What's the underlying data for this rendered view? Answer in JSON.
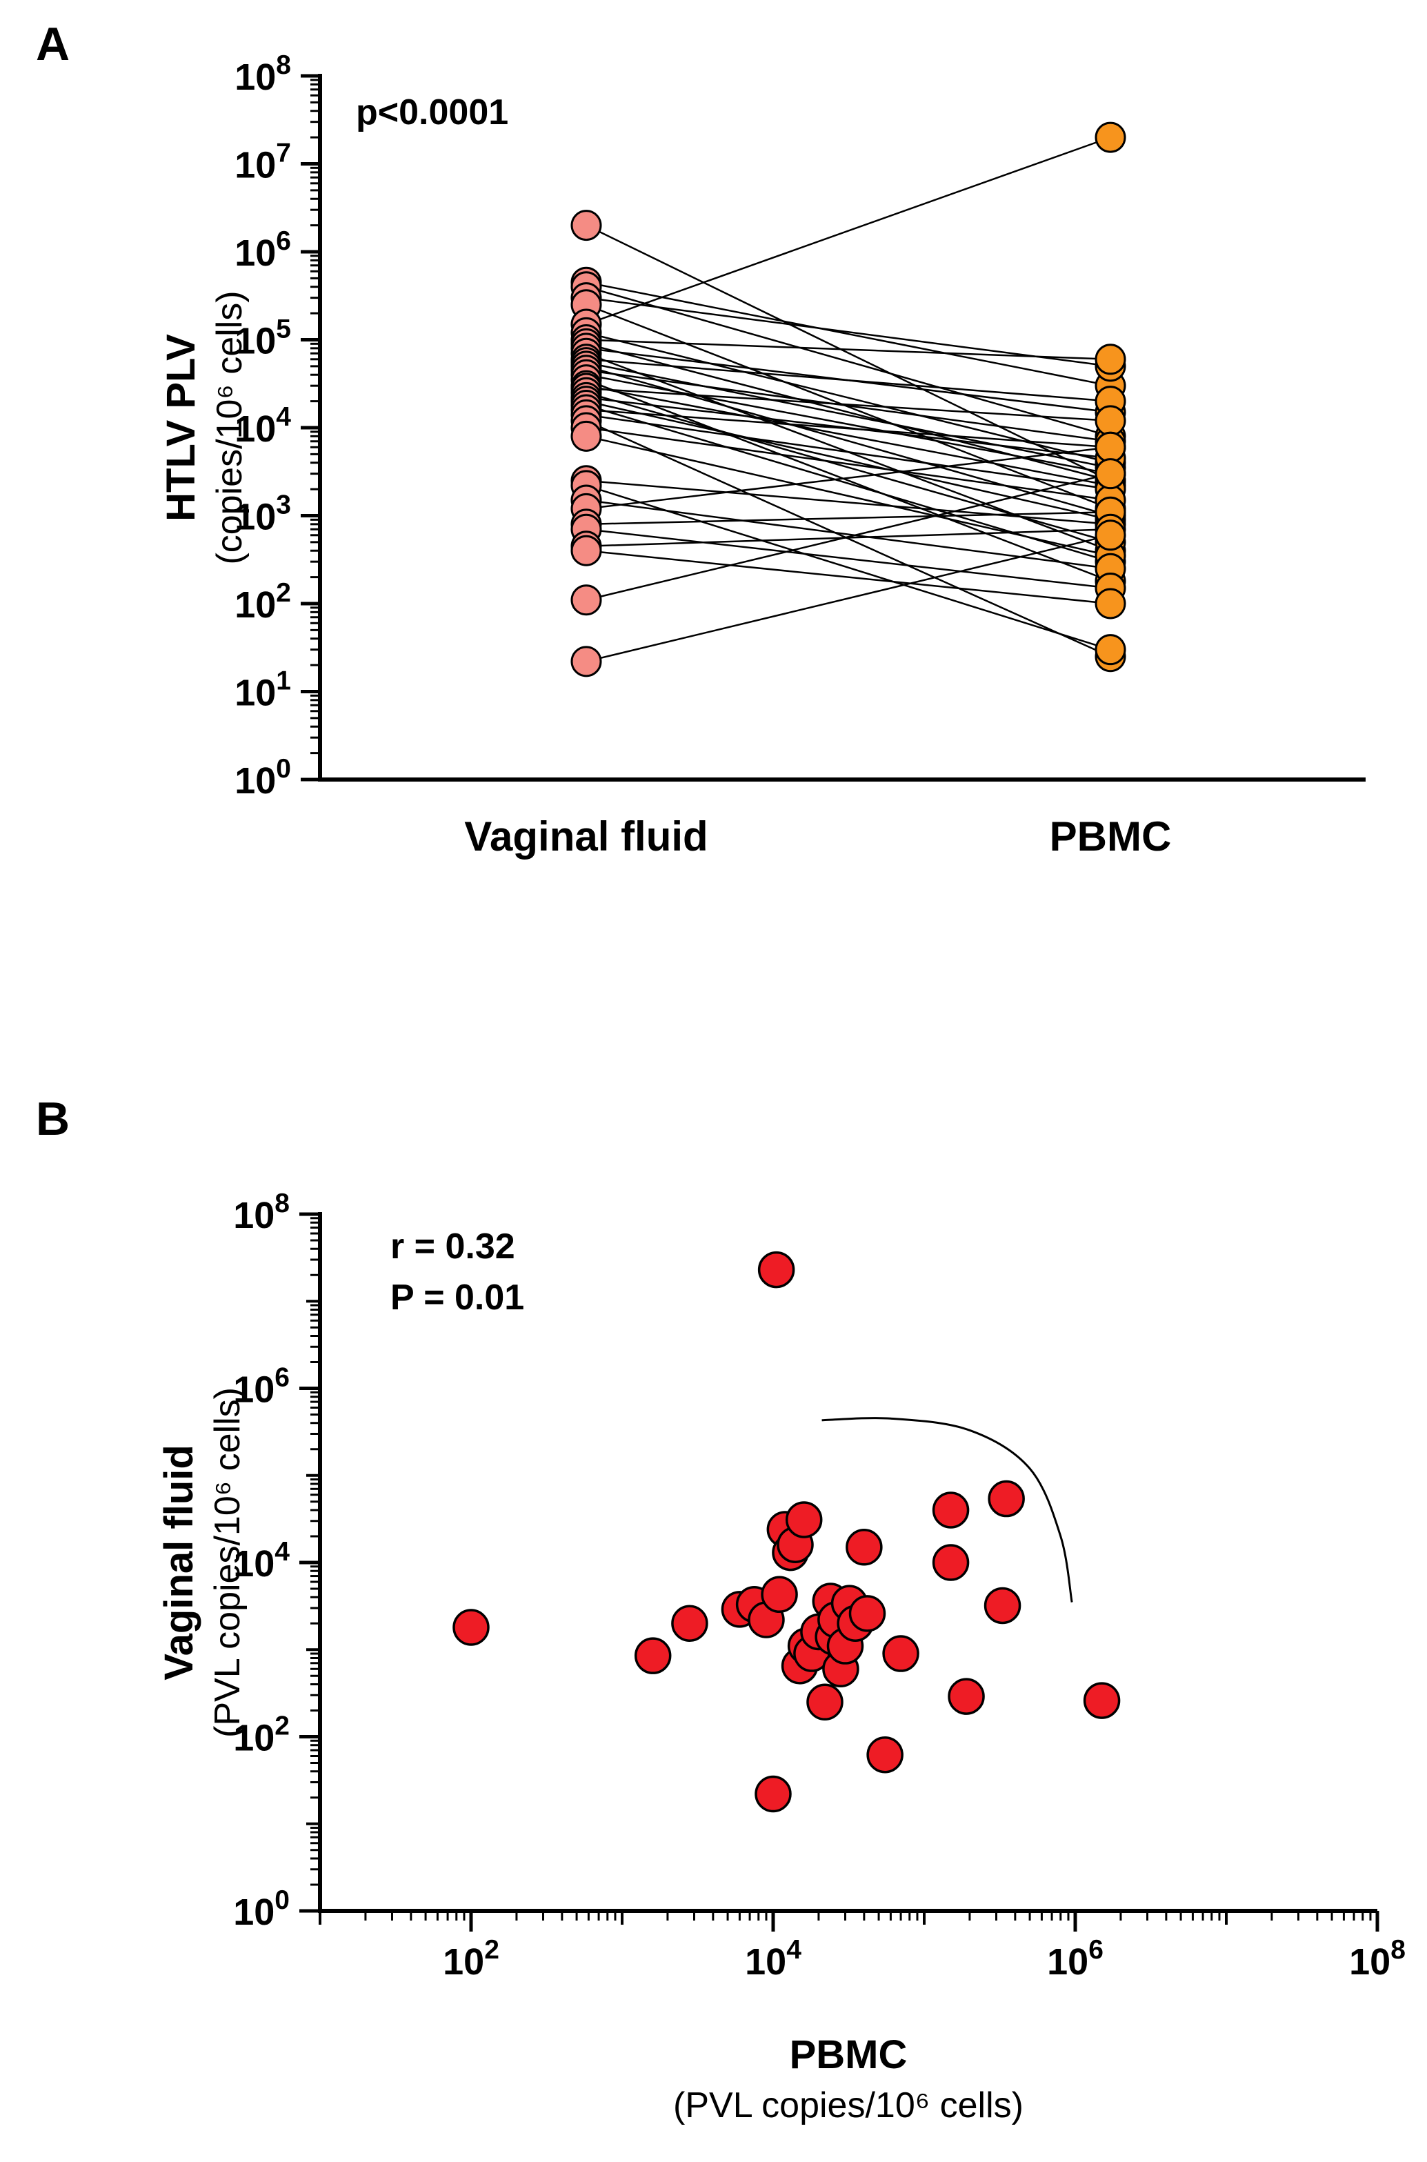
{
  "figure": {
    "panels": [
      {
        "letter": "A",
        "annotation": "p<0.0001",
        "y_label_line1": "HTLV PLV",
        "y_label_line2": "(copies/10⁶ cells)",
        "categories": [
          "Vaginal fluid",
          "PBMC"
        ]
      },
      {
        "letter": "B",
        "annotation_line1": "r = 0.32",
        "annotation_line2": "P = 0.01",
        "y_label_line1": "Vaginal fluid",
        "y_label_line2": "(PVL copies/10⁶ cells)",
        "x_label_line1": "PBMC",
        "x_label_line2": "(PVL copies/10⁶ cells)"
      }
    ]
  },
  "chart_data": [
    {
      "type": "scatter",
      "subtype": "paired-before-after",
      "panel": "A",
      "categories": [
        "Vaginal fluid",
        "PBMC"
      ],
      "y_scale": "log10",
      "ylim": [
        1,
        100000000
      ],
      "y_tick_exponents": [
        0,
        1,
        2,
        3,
        4,
        5,
        6,
        7,
        8
      ],
      "ylabel": "HTLV PLV (copies/10⁶ cells)",
      "p_value": "p<0.0001",
      "legend_position": "none",
      "grid": false,
      "point_colors": {
        "vaginal_fluid": "#F58C84",
        "pbmc": "#F7941D"
      },
      "line_color": "#000000",
      "pairs": [
        [
          2000000,
          2500
        ],
        [
          450000,
          30000
        ],
        [
          400000,
          8000
        ],
        [
          300000,
          50000
        ],
        [
          250000,
          1200
        ],
        [
          150000,
          20000000
        ],
        [
          120000,
          4000
        ],
        [
          100000,
          60000
        ],
        [
          90000,
          2500
        ],
        [
          80000,
          15000
        ],
        [
          70000,
          400
        ],
        [
          60000,
          20000
        ],
        [
          55000,
          3500
        ],
        [
          50000,
          1000
        ],
        [
          45000,
          7000
        ],
        [
          40000,
          3000
        ],
        [
          35000,
          180
        ],
        [
          30000,
          2200
        ],
        [
          28000,
          12000
        ],
        [
          25000,
          500
        ],
        [
          22000,
          4500
        ],
        [
          20000,
          900
        ],
        [
          18000,
          300
        ],
        [
          16000,
          6000
        ],
        [
          14000,
          2000
        ],
        [
          12000,
          25
        ],
        [
          10000,
          1500
        ],
        [
          8000,
          350
        ],
        [
          2500,
          800
        ],
        [
          2200,
          30
        ],
        [
          1500,
          250
        ],
        [
          1200,
          6000
        ],
        [
          800,
          1100
        ],
        [
          700,
          150
        ],
        [
          450,
          700
        ],
        [
          400,
          100
        ],
        [
          110,
          3000
        ],
        [
          22,
          600
        ]
      ]
    },
    {
      "type": "scatter",
      "panel": "B",
      "x_scale": "log10",
      "y_scale": "log10",
      "xlim": [
        10,
        100000000
      ],
      "ylim": [
        1,
        100000000
      ],
      "x_tick_label_exponents": [
        2,
        4,
        6,
        8
      ],
      "y_tick_label_exponents": [
        0,
        2,
        4,
        6,
        8
      ],
      "xlabel": "PBMC (PVL copies/10⁶ cells)",
      "ylabel": "Vaginal fluid (PVL copies/10⁶ cells)",
      "correlation_r": "r = 0.32",
      "p_value": "P = 0.01",
      "grid": false,
      "legend_position": "none",
      "point_color": "#EE1C25",
      "points": [
        [
          100,
          1800
        ],
        [
          1600,
          850
        ],
        [
          2800,
          2000
        ],
        [
          6000,
          2900
        ],
        [
          7500,
          3300
        ],
        [
          9000,
          2200
        ],
        [
          10500,
          23000000
        ],
        [
          11000,
          4300
        ],
        [
          12000,
          24000
        ],
        [
          13000,
          13000
        ],
        [
          14000,
          16000
        ],
        [
          15000,
          650
        ],
        [
          16000,
          31000
        ],
        [
          16500,
          1100
        ],
        [
          18000,
          900
        ],
        [
          20000,
          1600
        ],
        [
          22000,
          250
        ],
        [
          24000,
          3600
        ],
        [
          25000,
          1400
        ],
        [
          26000,
          2200
        ],
        [
          28000,
          600
        ],
        [
          30000,
          1100
        ],
        [
          32000,
          3400
        ],
        [
          35000,
          2000
        ],
        [
          40000,
          15000
        ],
        [
          42000,
          2600
        ],
        [
          55000,
          62
        ],
        [
          70000,
          900
        ],
        [
          150000,
          40000
        ],
        [
          150000,
          10000
        ],
        [
          350000,
          54000
        ],
        [
          330000,
          3200
        ],
        [
          190000,
          290
        ],
        [
          1500000,
          260
        ],
        [
          10000,
          22
        ]
      ],
      "curve_points": [
        [
          21000,
          430000
        ],
        [
          60000,
          450000
        ],
        [
          200000,
          330000
        ],
        [
          500000,
          120000
        ],
        [
          800000,
          20000
        ],
        [
          950000,
          3500
        ]
      ]
    }
  ]
}
